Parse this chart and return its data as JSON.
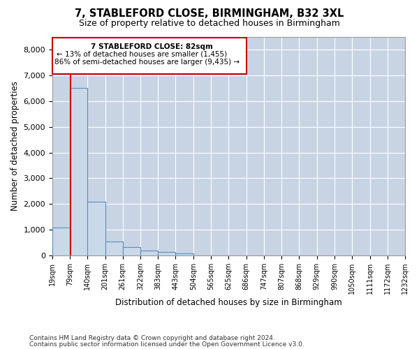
{
  "title1": "7, STABLEFORD CLOSE, BIRMINGHAM, B32 3XL",
  "title2": "Size of property relative to detached houses in Birmingham",
  "xlabel": "Distribution of detached houses by size in Birmingham",
  "ylabel": "Number of detached properties",
  "annotation_title": "7 STABLEFORD CLOSE: 82sqm",
  "annotation_line2": "← 13% of detached houses are smaller (1,455)",
  "annotation_line3": "86% of semi-detached houses are larger (9,435) →",
  "property_size": 82,
  "bar_color": "#c9d9ea",
  "bar_edge_color": "#5b8db8",
  "line_color": "#cc0000",
  "annotation_box_color": "#cc0000",
  "background_color": "#ffffff",
  "grid_color": "#c8d4e3",
  "bin_edges": [
    19,
    79,
    140,
    201,
    261,
    322,
    383,
    443,
    504,
    565,
    625,
    686,
    747,
    807,
    868,
    929,
    990,
    1050,
    1111,
    1172,
    1232
  ],
  "bin_labels": [
    "19sqm",
    "79sqm",
    "140sqm",
    "201sqm",
    "261sqm",
    "322sqm",
    "383sqm",
    "443sqm",
    "504sqm",
    "565sqm",
    "625sqm",
    "686sqm",
    "747sqm",
    "807sqm",
    "868sqm",
    "929sqm",
    "990sqm",
    "1050sqm",
    "1111sqm",
    "1172sqm",
    "1232sqm"
  ],
  "counts": [
    1100,
    6500,
    2100,
    560,
    340,
    200,
    140,
    90,
    10,
    0,
    0,
    0,
    0,
    0,
    0,
    0,
    0,
    0,
    0,
    0
  ],
  "ylim": [
    0,
    8500
  ],
  "yticks": [
    0,
    1000,
    2000,
    3000,
    4000,
    5000,
    6000,
    7000,
    8000
  ],
  "footer1": "Contains HM Land Registry data © Crown copyright and database right 2024.",
  "footer2": "Contains public sector information licensed under the Open Government Licence v3.0."
}
